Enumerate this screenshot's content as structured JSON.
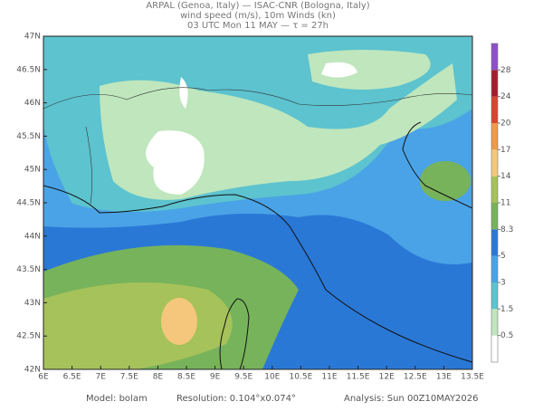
{
  "header": {
    "line1": "ARPAL (Genoa, Italy)  —  ISAC-CNR (Bologna, Italy)",
    "line2": "wind speed (m/s), 10m Winds (kn)",
    "line3": "03 UTC Mon 11 MAY  —  τ = 27h"
  },
  "map": {
    "lat_labels": [
      "47N",
      "46.5N",
      "46N",
      "45.5N",
      "45N",
      "44.5N",
      "44N",
      "43.5N",
      "43N",
      "42.5N",
      "42N"
    ],
    "lon_labels": [
      "6E",
      "6.5E",
      "7E",
      "7.5E",
      "8E",
      "8.5E",
      "9E",
      "9.5E",
      "10E",
      "10.5E",
      "11E",
      "11.5E",
      "12E",
      "12.5E",
      "13E",
      "13.5E"
    ]
  },
  "colorbar": {
    "levels": [
      0.5,
      1.5,
      3,
      5,
      8.3,
      11,
      14,
      17,
      20,
      24,
      28
    ],
    "colors": [
      "#ffffff",
      "#bfe6bd",
      "#5cc3cf",
      "#4aa3e6",
      "#2a78d6",
      "#77b35a",
      "#a6c25a",
      "#f4c77c",
      "#ef9a4c",
      "#d9452e",
      "#a51d2d",
      "#8e4fc9"
    ]
  },
  "footer": {
    "model": "Model: bolam",
    "resolution": "Resolution: 0.104°x0.074°",
    "analysis": "Analysis: Sun 00Z10MAY2026"
  }
}
